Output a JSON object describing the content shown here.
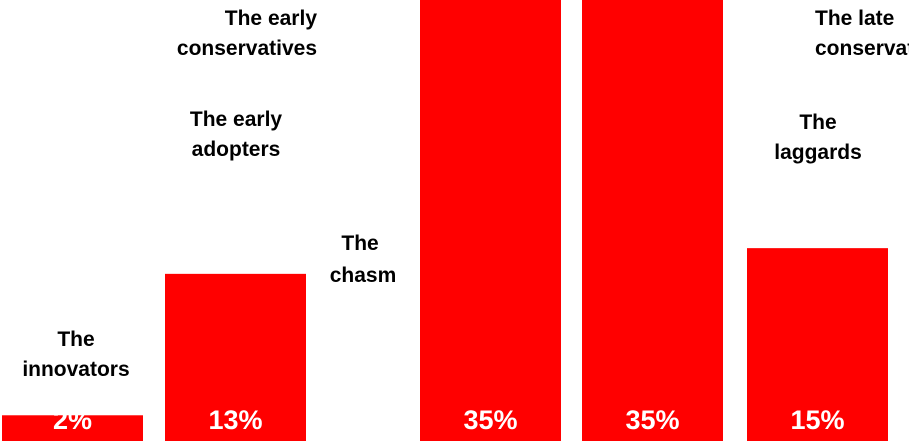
{
  "chart_data": {
    "type": "bar",
    "categories": [
      [
        "The",
        "innovators"
      ],
      [
        "The early",
        "adopters"
      ],
      [
        "The early",
        "conservatives"
      ],
      [
        "The late",
        "conservatives"
      ],
      [
        "The",
        "laggards"
      ]
    ],
    "values": [
      2,
      13,
      35,
      35,
      15
    ],
    "value_labels": [
      "2%",
      "13%",
      "35%",
      "35%",
      "15%"
    ],
    "annotation": [
      "The",
      "chasm"
    ],
    "bar_color": "#ff0000",
    "label_color": "#000000",
    "value_label_color": "#ffffff",
    "ylim": [
      0,
      35
    ],
    "grid": false,
    "legend": "none"
  }
}
